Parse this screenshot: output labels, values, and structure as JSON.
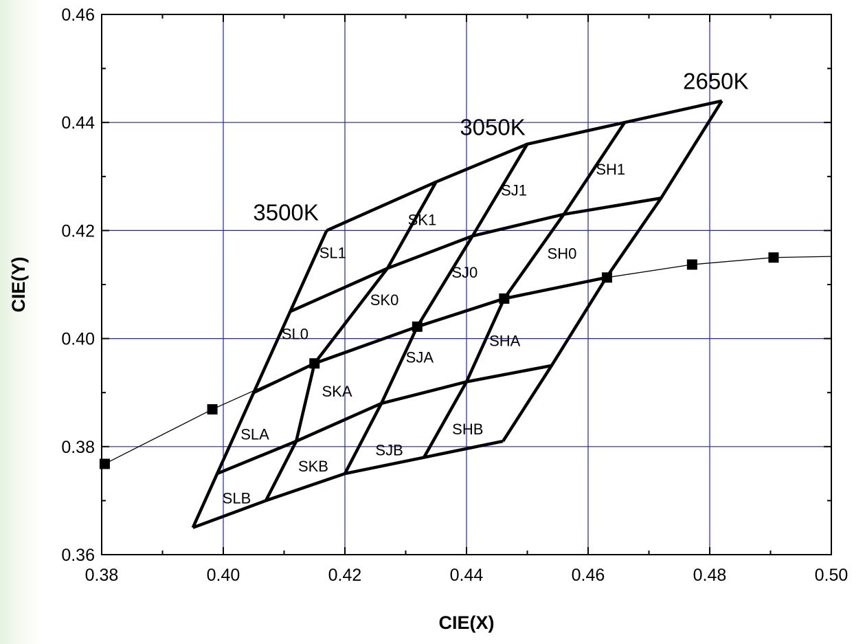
{
  "chart_data": {
    "type": "line",
    "xlabel": "CIE(X)",
    "ylabel": "CIE(Y)",
    "xlim": [
      0.38,
      0.5
    ],
    "ylim": [
      0.36,
      0.46
    ],
    "x_ticks": [
      "0.38",
      "0.40",
      "0.42",
      "0.44",
      "0.46",
      "0.48",
      "0.50"
    ],
    "y_ticks": [
      "0.36",
      "0.38",
      "0.40",
      "0.42",
      "0.44",
      "0.46"
    ],
    "grid": true,
    "colors": {
      "grid": "#1f1fd0",
      "lines": "#000000",
      "background": "#ffffff",
      "side_band": "#e6f1e0"
    },
    "series": [
      {
        "type": "line-with-markers",
        "points": [
          [
            0.3805,
            0.3768
          ],
          [
            0.3982,
            0.3869
          ],
          [
            0.415,
            0.3954
          ],
          [
            0.4319,
            0.4022
          ],
          [
            0.4462,
            0.4074
          ],
          [
            0.4631,
            0.4113
          ],
          [
            0.4771,
            0.4137
          ],
          [
            0.4905,
            0.415
          ],
          [
            0.5,
            0.4152
          ]
        ],
        "marker_count": 8
      }
    ],
    "bin_grid": {
      "rows": [
        [
          [
            0.395,
            0.365
          ],
          [
            0.407,
            0.37
          ],
          [
            0.42,
            0.375
          ],
          [
            0.433,
            0.378
          ],
          [
            0.446,
            0.381
          ]
        ],
        [
          [
            0.399,
            0.375
          ],
          [
            0.412,
            0.381
          ],
          [
            0.426,
            0.388
          ],
          [
            0.44,
            0.392
          ],
          [
            0.454,
            0.395
          ]
        ],
        [
          [
            0.405,
            0.39
          ],
          [
            0.415,
            0.3954
          ],
          [
            0.4319,
            0.4022
          ],
          [
            0.4462,
            0.4074
          ],
          [
            0.463,
            0.4113
          ]
        ],
        [
          [
            0.411,
            0.405
          ],
          [
            0.427,
            0.413
          ],
          [
            0.441,
            0.419
          ],
          [
            0.456,
            0.423
          ],
          [
            0.472,
            0.426
          ]
        ],
        [
          [
            0.417,
            0.42
          ],
          [
            0.435,
            0.429
          ],
          [
            0.45,
            0.436
          ],
          [
            0.466,
            0.44
          ],
          [
            0.482,
            0.444
          ]
        ]
      ],
      "region_labels": [
        {
          "text": "SLB",
          "x": 0.4022,
          "y": 0.3705
        },
        {
          "text": "SKB",
          "x": 0.4148,
          "y": 0.3764
        },
        {
          "text": "SJB",
          "x": 0.4273,
          "y": 0.3794
        },
        {
          "text": "SHB",
          "x": 0.4402,
          "y": 0.3833
        },
        {
          "text": "SLA",
          "x": 0.4052,
          "y": 0.3823
        },
        {
          "text": "SKA",
          "x": 0.4187,
          "y": 0.3903
        },
        {
          "text": "SJA",
          "x": 0.4323,
          "y": 0.3966
        },
        {
          "text": "SHA",
          "x": 0.4463,
          "y": 0.3996
        },
        {
          "text": "SL0",
          "x": 0.4118,
          "y": 0.4009
        },
        {
          "text": "SK0",
          "x": 0.4265,
          "y": 0.4072
        },
        {
          "text": "SJ0",
          "x": 0.4397,
          "y": 0.4123
        },
        {
          "text": "SH0",
          "x": 0.4557,
          "y": 0.4158
        },
        {
          "text": "SL1",
          "x": 0.418,
          "y": 0.4159
        },
        {
          "text": "SK1",
          "x": 0.4327,
          "y": 0.422
        },
        {
          "text": "SJ1",
          "x": 0.4478,
          "y": 0.4275
        },
        {
          "text": "SH1",
          "x": 0.4637,
          "y": 0.4314
        }
      ]
    },
    "annotations": [
      {
        "text": "3500K",
        "x": 0.4103,
        "y": 0.4234
      },
      {
        "text": "3050K",
        "x": 0.4443,
        "y": 0.4392
      },
      {
        "text": "2650K",
        "x": 0.481,
        "y": 0.4477
      }
    ]
  }
}
